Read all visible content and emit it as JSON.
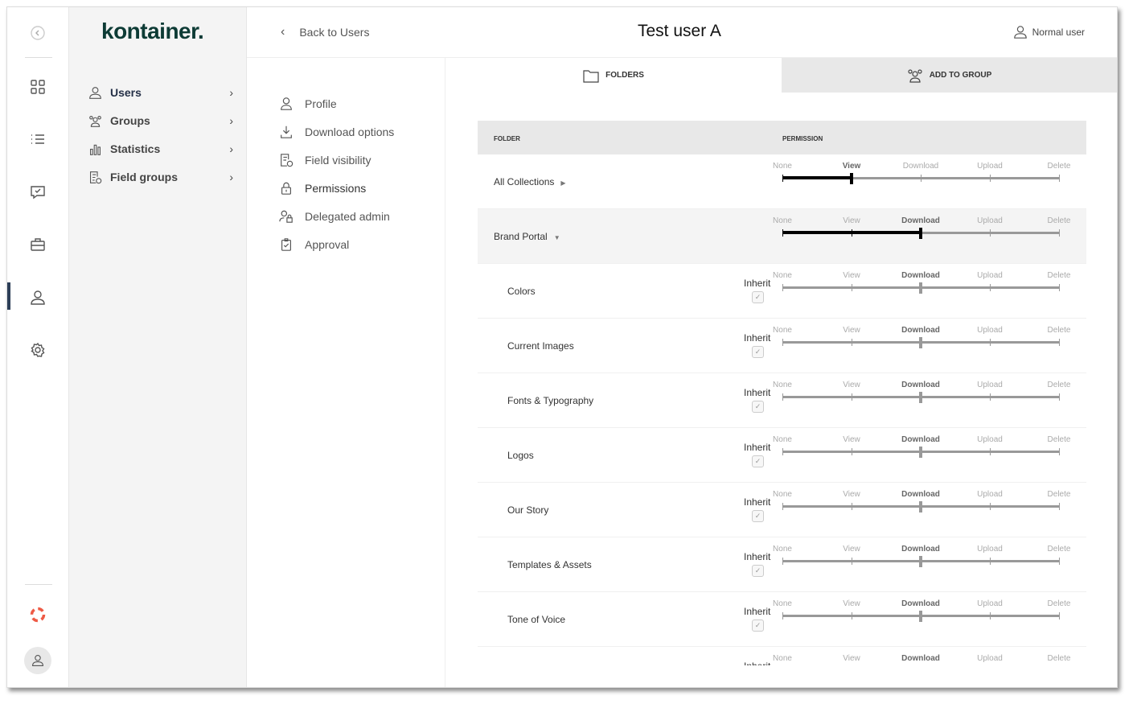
{
  "app": {
    "logo": "kontainer."
  },
  "rail": {
    "icons": [
      "collapse-icon",
      "grid-icon",
      "list-icon",
      "chat-check-icon",
      "briefcase-icon",
      "user-icon",
      "gear-icon"
    ],
    "help_color": "#ee5a45"
  },
  "sidebar": {
    "items": [
      {
        "label": "Users",
        "active": true
      },
      {
        "label": "Groups"
      },
      {
        "label": "Statistics"
      },
      {
        "label": "Field groups"
      }
    ]
  },
  "header": {
    "back": "Back to Users",
    "title": "Test user A",
    "user_type": "Normal user"
  },
  "submenu": {
    "items": [
      {
        "label": "Profile"
      },
      {
        "label": "Download options"
      },
      {
        "label": "Field visibility"
      },
      {
        "label": "Permissions",
        "active": true
      },
      {
        "label": "Delegated admin"
      },
      {
        "label": "Approval"
      }
    ]
  },
  "tabs": {
    "folders": "FOLDERS",
    "add_to_group": "ADD TO GROUP"
  },
  "table": {
    "col_folder": "FOLDER",
    "col_permission": "PERMISSION",
    "levels": [
      "None",
      "View",
      "Download",
      "Upload",
      "Delete"
    ],
    "inherit_label": "Inherit",
    "rows": [
      {
        "name": "All Collections",
        "expander": "▶",
        "value": 1,
        "level": 0
      },
      {
        "name": "Brand Portal",
        "expander": "▼",
        "value": 2,
        "level": 0,
        "highlight": true
      },
      {
        "name": "Colors",
        "value": 2,
        "level": 1,
        "inherit": true
      },
      {
        "name": "Current Images",
        "value": 2,
        "level": 1,
        "inherit": true
      },
      {
        "name": "Fonts & Typography",
        "value": 2,
        "level": 1,
        "inherit": true
      },
      {
        "name": "Logos",
        "value": 2,
        "level": 1,
        "inherit": true
      },
      {
        "name": "Our Story",
        "value": 2,
        "level": 1,
        "inherit": true
      },
      {
        "name": "Templates & Assets",
        "value": 2,
        "level": 1,
        "inherit": true
      },
      {
        "name": "Tone of Voice",
        "value": 2,
        "level": 1,
        "inherit": true
      },
      {
        "name": "",
        "value": 2,
        "level": 1,
        "inherit": true
      }
    ]
  }
}
